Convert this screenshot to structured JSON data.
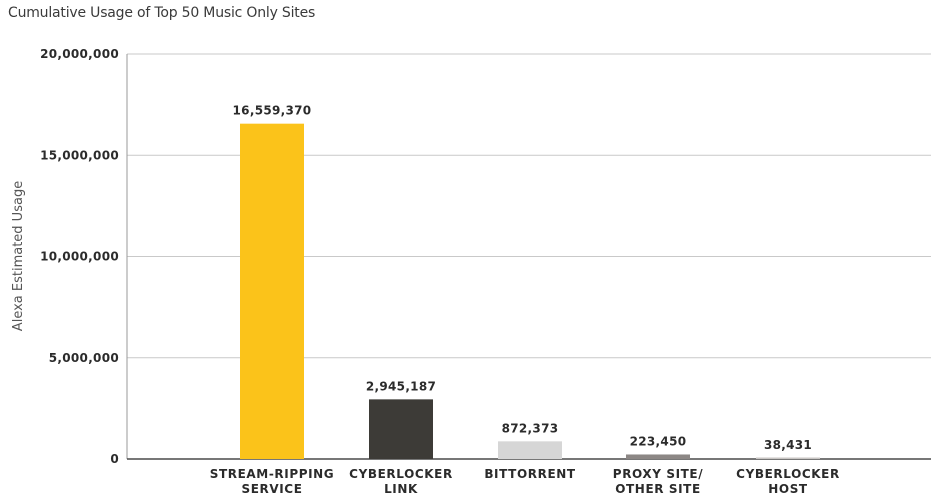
{
  "chart_data": {
    "type": "bar",
    "title": "Cumulative Usage of Top 50 Music Only Sites",
    "ylabel": "Alexa Estimated Usage",
    "xlabel": "",
    "ylim": [
      0,
      20000000
    ],
    "yticks": [
      {
        "value": 0,
        "label": "0"
      },
      {
        "value": 5000000,
        "label": "5,000,000"
      },
      {
        "value": 10000000,
        "label": "10,000,000"
      },
      {
        "value": 15000000,
        "label": "15,000,000"
      },
      {
        "value": 20000000,
        "label": "20,000,000"
      }
    ],
    "categories": [
      [
        "STREAM-RIPPING",
        "SERVICE"
      ],
      [
        "CYBERLOCKER",
        "LINK"
      ],
      [
        "BITTORRENT"
      ],
      [
        "PROXY SITE/",
        "OTHER SITE"
      ],
      [
        "CYBERLOCKER",
        "HOST"
      ]
    ],
    "values": [
      16559370,
      2945187,
      872373,
      223450,
      38431
    ],
    "value_labels": [
      "16,559,370",
      "2,945,187",
      "872,373",
      "223,450",
      "38,431"
    ],
    "colors": [
      "#fbc31a",
      "#3d3b37",
      "#d6d6d6",
      "#8c8785",
      "#c8c5c3"
    ],
    "grid": true,
    "legend": "none"
  }
}
